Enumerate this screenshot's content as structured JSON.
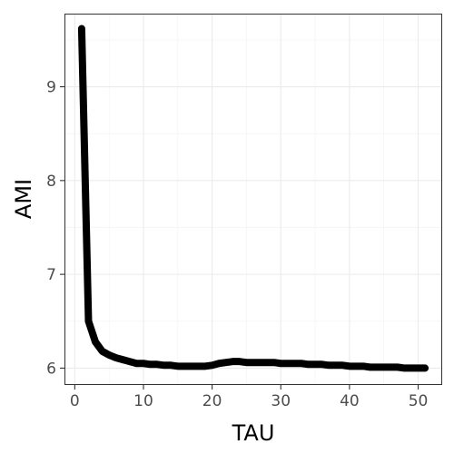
{
  "chart_data": {
    "type": "line",
    "title": "",
    "xlabel": "TAU",
    "ylabel": "AMI",
    "xlim": [
      -1.5,
      53.5
    ],
    "ylim": [
      5.82,
      9.78
    ],
    "x_ticks": [
      0,
      10,
      20,
      30,
      40,
      50
    ],
    "y_ticks": [
      6,
      7,
      8,
      9
    ],
    "x_minor_ticks": [
      5,
      15,
      25,
      35,
      45
    ],
    "y_minor_ticks": [
      6.5,
      7.5,
      8.5,
      9.5
    ],
    "grid": true,
    "theme": "bw",
    "series": [
      {
        "color": "#000000",
        "x": [
          1,
          2,
          3,
          4,
          5,
          6,
          7,
          8,
          9,
          10,
          11,
          12,
          13,
          14,
          15,
          16,
          17,
          18,
          19,
          20,
          21,
          22,
          23,
          24,
          25,
          26,
          27,
          28,
          29,
          30,
          31,
          32,
          33,
          34,
          35,
          36,
          37,
          38,
          39,
          40,
          41,
          42,
          43,
          44,
          45,
          46,
          47,
          48,
          49,
          50,
          51
        ],
        "y": [
          9.62,
          6.5,
          6.28,
          6.18,
          6.14,
          6.11,
          6.09,
          6.07,
          6.05,
          6.05,
          6.04,
          6.04,
          6.03,
          6.03,
          6.02,
          6.02,
          6.02,
          6.02,
          6.02,
          6.03,
          6.05,
          6.06,
          6.07,
          6.07,
          6.06,
          6.06,
          6.06,
          6.06,
          6.06,
          6.05,
          6.05,
          6.05,
          6.05,
          6.04,
          6.04,
          6.04,
          6.03,
          6.03,
          6.03,
          6.02,
          6.02,
          6.02,
          6.01,
          6.01,
          6.01,
          6.01,
          6.01,
          6.0,
          6.0,
          6.0,
          6.0
        ]
      }
    ]
  }
}
